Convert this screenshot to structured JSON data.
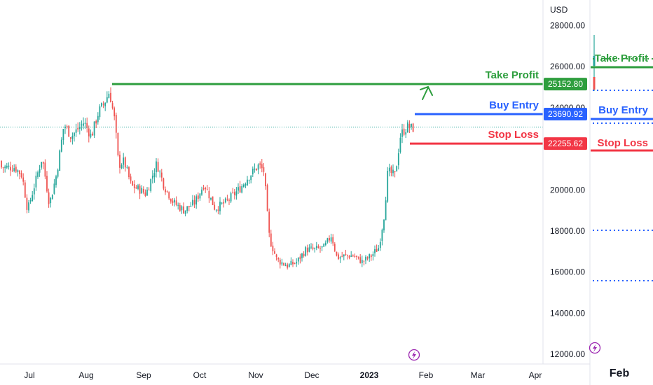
{
  "chart_data": {
    "type": "candlestick",
    "currency": "USD",
    "y_ticks": [
      "28000.00",
      "26000.00",
      "24000.00",
      "20000.00",
      "18000.00",
      "16000.00",
      "14000.00",
      "12000.00"
    ],
    "ylim": [
      12000,
      28500
    ],
    "x_ticks": [
      "Jul",
      "Aug",
      "Sep",
      "Oct",
      "Nov",
      "Dec",
      "2023",
      "Feb",
      "Mar",
      "Apr"
    ],
    "series_points": [
      {
        "date": "2022-06-23",
        "close": 21100
      },
      {
        "date": "2022-06-27",
        "close": 20700
      },
      {
        "date": "2022-06-30",
        "close": 19000
      },
      {
        "date": "2022-07-04",
        "close": 20300
      },
      {
        "date": "2022-07-08",
        "close": 21600
      },
      {
        "date": "2022-07-12",
        "close": 19300
      },
      {
        "date": "2022-07-16",
        "close": 20800
      },
      {
        "date": "2022-07-20",
        "close": 23200
      },
      {
        "date": "2022-07-24",
        "close": 22600
      },
      {
        "date": "2022-07-27",
        "close": 22900
      },
      {
        "date": "2022-07-31",
        "close": 23300
      },
      {
        "date": "2022-08-04",
        "close": 22600
      },
      {
        "date": "2022-08-08",
        "close": 23800
      },
      {
        "date": "2022-08-11",
        "close": 24200
      },
      {
        "date": "2022-08-14",
        "close": 24800
      },
      {
        "date": "2022-08-17",
        "close": 23300
      },
      {
        "date": "2022-08-19",
        "close": 21200
      },
      {
        "date": "2022-08-22",
        "close": 21400
      },
      {
        "date": "2022-08-26",
        "close": 20200
      },
      {
        "date": "2022-08-31",
        "close": 20000
      },
      {
        "date": "2022-09-03",
        "close": 19800
      },
      {
        "date": "2022-09-09",
        "close": 21300
      },
      {
        "date": "2022-09-13",
        "close": 20200
      },
      {
        "date": "2022-09-18",
        "close": 19400
      },
      {
        "date": "2022-09-24",
        "close": 19000
      },
      {
        "date": "2022-09-30",
        "close": 19400
      },
      {
        "date": "2022-10-05",
        "close": 20300
      },
      {
        "date": "2022-10-11",
        "close": 19100
      },
      {
        "date": "2022-10-17",
        "close": 19400
      },
      {
        "date": "2022-10-25",
        "close": 20100
      },
      {
        "date": "2022-10-29",
        "close": 20600
      },
      {
        "date": "2022-11-04",
        "close": 21200
      },
      {
        "date": "2022-11-07",
        "close": 20900
      },
      {
        "date": "2022-11-09",
        "close": 18500
      },
      {
        "date": "2022-11-10",
        "close": 17600
      },
      {
        "date": "2022-11-14",
        "close": 16600
      },
      {
        "date": "2022-11-20",
        "close": 16300
      },
      {
        "date": "2022-11-25",
        "close": 16500
      },
      {
        "date": "2022-11-30",
        "close": 17100
      },
      {
        "date": "2022-12-05",
        "close": 17100
      },
      {
        "date": "2022-12-10",
        "close": 17200
      },
      {
        "date": "2022-12-14",
        "close": 17800
      },
      {
        "date": "2022-12-17",
        "close": 16700
      },
      {
        "date": "2022-12-22",
        "close": 16800
      },
      {
        "date": "2022-12-26",
        "close": 16800
      },
      {
        "date": "2022-12-31",
        "close": 16500
      },
      {
        "date": "2023-01-05",
        "close": 16800
      },
      {
        "date": "2023-01-09",
        "close": 17200
      },
      {
        "date": "2023-01-12",
        "close": 18800
      },
      {
        "date": "2023-01-14",
        "close": 20900
      },
      {
        "date": "2023-01-18",
        "close": 20700
      },
      {
        "date": "2023-01-21",
        "close": 22700
      },
      {
        "date": "2023-01-25",
        "close": 23100
      },
      {
        "date": "2023-01-27",
        "close": 23000
      }
    ],
    "levels": [
      {
        "name": "Take Profit",
        "value": "25152.80",
        "price": 25152.8,
        "color": "#2e9e3e"
      },
      {
        "name": "Buy Entry",
        "value": "23690.92",
        "price": 23690.92,
        "color": "#2962ff"
      },
      {
        "name": "Stop Loss",
        "value": "22255.62",
        "price": 22255.62,
        "color": "#f23645"
      }
    ],
    "last_price_line": 23060,
    "up_color": "#26a69a",
    "down_color": "#ef5350"
  },
  "side_panel": {
    "month_label": "Feb",
    "labels": [
      "Take Profit",
      "Buy Entry",
      "Stop Loss"
    ]
  }
}
